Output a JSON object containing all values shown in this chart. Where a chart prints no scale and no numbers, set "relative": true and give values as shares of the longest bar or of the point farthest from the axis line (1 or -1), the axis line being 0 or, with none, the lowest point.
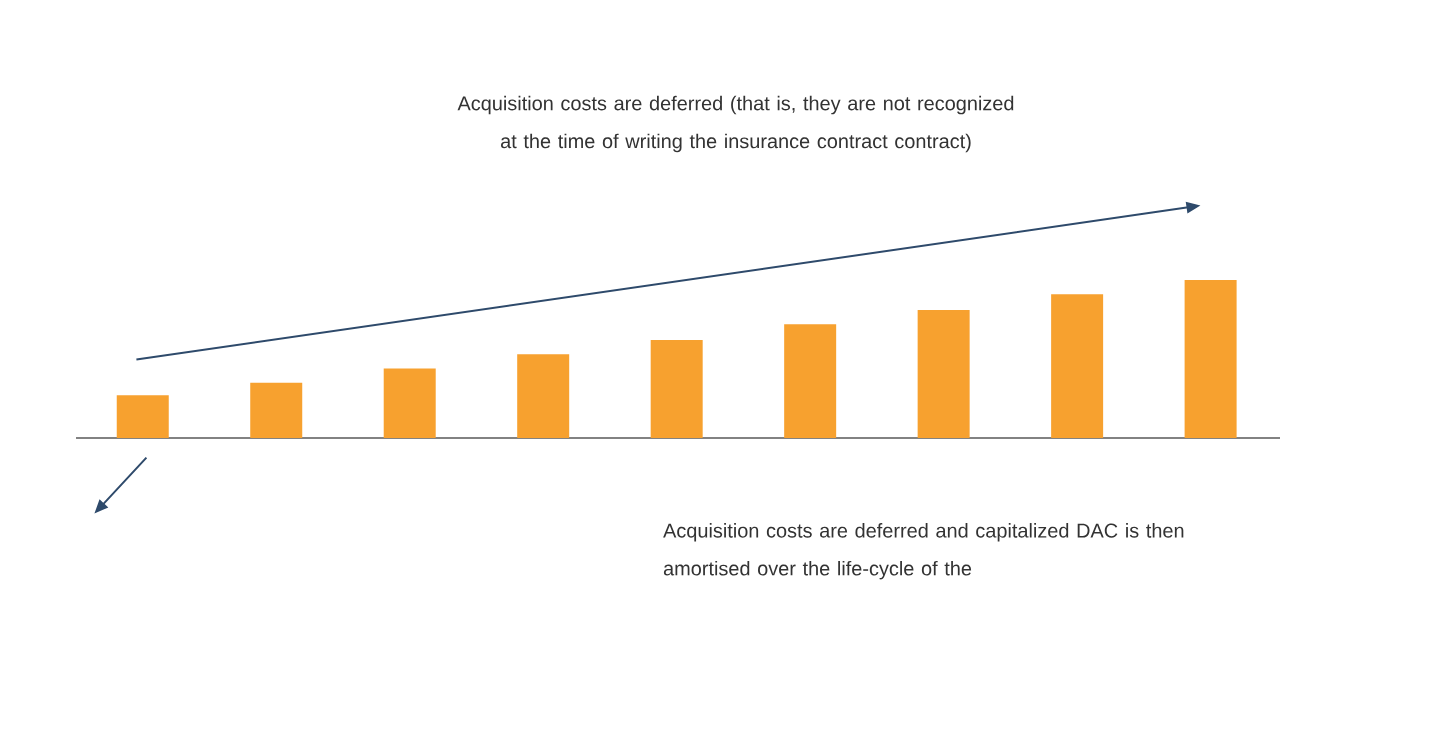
{
  "chart_data": {
    "type": "bar",
    "relative": true,
    "categories": [
      null,
      null,
      null,
      null,
      null,
      null,
      null,
      null,
      null
    ],
    "values": [
      0.27,
      0.35,
      0.44,
      0.53,
      0.62,
      0.72,
      0.81,
      0.91,
      1
    ],
    "color": "#f7a12f",
    "annotations": [
      "Acquisition costs are deferred (that is, they are not recognized at the time of writing the insurance contract contract)",
      "Acquisition costs are deferred and capitalized DAC is then amortised over the life-cycle of the"
    ]
  }
}
